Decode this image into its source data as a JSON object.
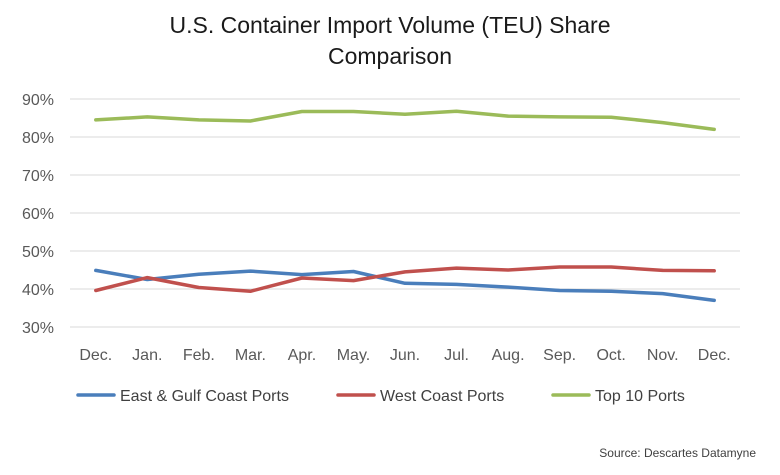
{
  "chart_data": {
    "type": "line",
    "title_lines": [
      "U.S. Container Import Volume (TEU) Share",
      "Comparison"
    ],
    "categories": [
      "Dec.",
      "Jan.",
      "Feb.",
      "Mar.",
      "Apr.",
      "May.",
      "Jun.",
      "Jul.",
      "Aug.",
      "Sep.",
      "Oct.",
      "Nov.",
      "Dec."
    ],
    "y_ticks": [
      "30%",
      "40%",
      "50%",
      "60%",
      "70%",
      "80%",
      "90%"
    ],
    "ylim": [
      30,
      90
    ],
    "y_unit": "%",
    "grid": true,
    "legend_position": "bottom",
    "series": [
      {
        "name": "East & Gulf Coast Ports",
        "color": "#4a7ebb",
        "values": [
          44.9,
          42.5,
          43.9,
          44.7,
          43.8,
          44.6,
          41.5,
          41.2,
          40.5,
          39.6,
          39.4,
          38.8,
          37.0
        ]
      },
      {
        "name": "West Coast Ports",
        "color": "#c0504d",
        "values": [
          39.6,
          43.0,
          40.4,
          39.4,
          42.9,
          42.2,
          44.5,
          45.5,
          45.0,
          45.8,
          45.8,
          44.9,
          44.8
        ]
      },
      {
        "name": "Top 10 Ports",
        "color": "#9bbb59",
        "values": [
          84.5,
          85.3,
          84.5,
          84.2,
          86.7,
          86.7,
          86.0,
          86.8,
          85.5,
          85.3,
          85.2,
          83.8,
          82.0
        ]
      }
    ],
    "source": "Source: Descartes Datamyne"
  }
}
